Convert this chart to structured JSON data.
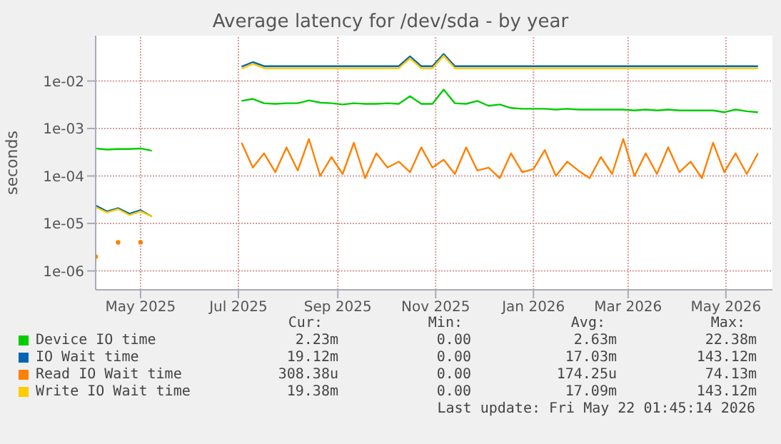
{
  "chart_data": {
    "type": "line",
    "title": "Average latency for /dev/sda - by year",
    "ylabel": "seconds",
    "x": [
      "2025-04-03",
      "2025-04-10",
      "2025-04-17",
      "2025-04-24",
      "2025-05-01",
      "2025-05-08",
      "2025-06-01",
      "2025-07-03",
      "2025-07-10",
      "2025-07-17",
      "2025-07-24",
      "2025-07-31",
      "2025-08-07",
      "2025-08-14",
      "2025-08-21",
      "2025-08-28",
      "2025-09-04",
      "2025-09-11",
      "2025-09-18",
      "2025-09-25",
      "2025-10-02",
      "2025-10-09",
      "2025-10-16",
      "2025-10-23",
      "2025-10-30",
      "2025-11-06",
      "2025-11-13",
      "2025-11-20",
      "2025-11-27",
      "2025-12-04",
      "2025-12-11",
      "2025-12-18",
      "2025-12-25",
      "2026-01-01",
      "2026-01-08",
      "2026-01-15",
      "2026-01-22",
      "2026-01-29",
      "2026-02-05",
      "2026-02-12",
      "2026-02-19",
      "2026-02-26",
      "2026-03-05",
      "2026-03-12",
      "2026-03-19",
      "2026-03-26",
      "2026-04-02",
      "2026-04-09",
      "2026-04-16",
      "2026-04-23",
      "2026-04-30",
      "2026-05-07",
      "2026-05-14",
      "2026-05-21"
    ],
    "series": [
      {
        "name": "Device IO time",
        "color": "#00cc00",
        "values": [
          0.00038,
          0.00036,
          0.00037,
          0.00037,
          0.00038,
          0.00034,
          null,
          0.0038,
          0.0042,
          0.0034,
          0.0033,
          0.0034,
          0.0034,
          0.0039,
          0.0035,
          0.0034,
          0.0032,
          0.0034,
          0.0033,
          0.0033,
          0.0034,
          0.0033,
          0.0048,
          0.0033,
          0.0033,
          0.0066,
          0.0034,
          0.0033,
          0.0038,
          0.003,
          0.0032,
          0.0027,
          0.0026,
          0.0026,
          0.0026,
          0.0025,
          0.0026,
          0.0025,
          0.0025,
          0.0025,
          0.0025,
          0.0025,
          0.0024,
          0.0025,
          0.0024,
          0.0025,
          0.0024,
          0.0024,
          0.0024,
          0.0024,
          0.0022,
          0.0025,
          0.0023,
          0.0022
        ]
      },
      {
        "name": "IO Wait time",
        "color": "#0066b3",
        "values": [
          2.4e-05,
          1.8e-05,
          2.1e-05,
          1.6e-05,
          1.9e-05,
          1.4e-05,
          null,
          0.02,
          0.025,
          0.0205,
          0.0205,
          0.0205,
          0.0205,
          0.0205,
          0.0205,
          0.0205,
          0.0205,
          0.0205,
          0.0205,
          0.0205,
          0.0205,
          0.0205,
          0.033,
          0.0205,
          0.0205,
          0.037,
          0.0205,
          0.0205,
          0.0205,
          0.0205,
          0.0205,
          0.0205,
          0.0205,
          0.0205,
          0.0205,
          0.0205,
          0.0205,
          0.0205,
          0.0205,
          0.0205,
          0.0205,
          0.0205,
          0.0205,
          0.0205,
          0.0205,
          0.0205,
          0.0205,
          0.0205,
          0.0205,
          0.0205,
          0.0205,
          0.0205,
          0.0205,
          0.0205
        ]
      },
      {
        "name": "Read IO Wait time",
        "color": "#ff8000",
        "values": [
          2e-06,
          null,
          4e-06,
          null,
          4e-06,
          null,
          null,
          0.0005,
          0.00015,
          0.0003,
          0.00012,
          0.0004,
          0.00013,
          0.0006,
          0.0001,
          0.00025,
          0.00011,
          0.0005,
          9e-05,
          0.0003,
          0.00015,
          0.0002,
          0.00012,
          0.0004,
          0.00015,
          0.00022,
          0.00011,
          0.0004,
          0.00013,
          0.00015,
          9e-05,
          0.0003,
          0.00012,
          0.00014,
          0.00035,
          0.0001,
          0.0002,
          0.00013,
          9e-05,
          0.00025,
          0.00011,
          0.0006,
          0.0001,
          0.0003,
          0.00011,
          0.0004,
          0.00012,
          0.0002,
          9e-05,
          0.0005,
          0.00012,
          0.0003,
          0.00011,
          0.0003
        ]
      },
      {
        "name": "Write IO Wait time",
        "color": "#ffcc00",
        "values": [
          2.2e-05,
          1.7e-05,
          2e-05,
          1.5e-05,
          1.8e-05,
          1.4e-05,
          null,
          0.018,
          0.023,
          0.0185,
          0.0185,
          0.0185,
          0.0185,
          0.0185,
          0.0185,
          0.0185,
          0.0185,
          0.0185,
          0.0185,
          0.0185,
          0.0185,
          0.0185,
          0.03,
          0.0185,
          0.0185,
          0.034,
          0.0185,
          0.0185,
          0.0185,
          0.0185,
          0.0185,
          0.0185,
          0.0185,
          0.0185,
          0.0185,
          0.0185,
          0.0185,
          0.0185,
          0.0185,
          0.0185,
          0.0185,
          0.0185,
          0.0185,
          0.0185,
          0.0185,
          0.0185,
          0.0185,
          0.0185,
          0.0185,
          0.0185,
          0.0185,
          0.0185,
          0.0185,
          0.0185
        ]
      }
    ],
    "xlim": [
      "2025-04-03",
      "2026-05-30"
    ],
    "xticks": [
      {
        "value": "2025-05-01",
        "label": "May 2025"
      },
      {
        "value": "2025-07-01",
        "label": "Jul 2025"
      },
      {
        "value": "2025-09-01",
        "label": "Sep 2025"
      },
      {
        "value": "2025-11-01",
        "label": "Nov 2025"
      },
      {
        "value": "2026-01-01",
        "label": "Jan 2026"
      },
      {
        "value": "2026-03-01",
        "label": "Mar 2026"
      },
      {
        "value": "2026-05-01",
        "label": "May 2026"
      }
    ],
    "ylim": [
      4e-07,
      0.09
    ],
    "yticks": [
      {
        "value": 1e-06,
        "label": "1e-06"
      },
      {
        "value": 1e-05,
        "label": "1e-05"
      },
      {
        "value": 0.0001,
        "label": "1e-04"
      },
      {
        "value": 0.001,
        "label": "1e-03"
      },
      {
        "value": 0.01,
        "label": "1e-02"
      }
    ],
    "log": "y",
    "grid": true,
    "legend": "bottom",
    "annotations": [
      "Cur:",
      "Min:",
      "Avg:",
      "Max:",
      "2.23m",
      "0.00",
      "2.63m",
      "22.38m",
      "19.12m",
      "0.00",
      "17.03m",
      "143.12m",
      "308.38u",
      "0.00",
      "174.25u",
      "74.13m",
      "19.38m",
      "0.00",
      "17.09m",
      "143.12m",
      "Last update: Fri May 22 01:45:14 2026"
    ]
  }
}
